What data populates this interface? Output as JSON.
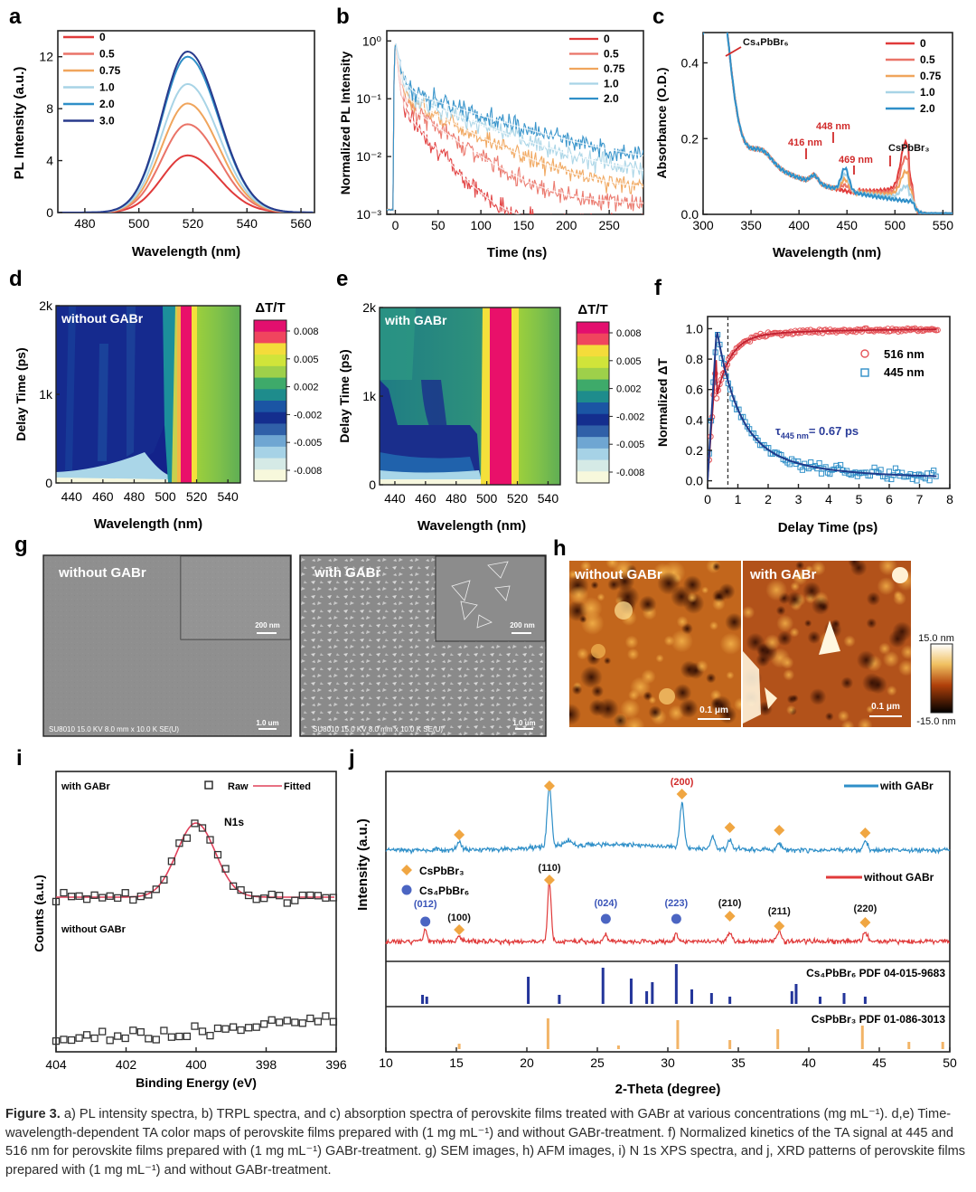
{
  "figure_label": "Figure 3.",
  "caption": "a) PL intensity spectra, b) TRPL spectra, and c) absorption spectra of perovskite films treated with GABr at various concentrations (mg mL⁻¹). d,e) Time-wavelength-dependent TA color maps of perovskite films prepared with (1 mg mL⁻¹) and without GABr-treatment. f) Normalized kinetics of the TA signal at 445 and 516 nm for perovskite films prepared with (1 mg mL⁻¹) GABr-treatment. g) SEM images, h) AFM images, i) N 1s XPS spectra, and j, XRD patterns of perovskite films prepared with (1 mg mL⁻¹) and without GABr-treatment.",
  "colors": {
    "c0": "#e03a3a",
    "c05": "#ea7468",
    "c075": "#f0a55c",
    "c10": "#a8d4e6",
    "c20": "#2f8fc8",
    "c30": "#283a8c",
    "red": "#e03a3a",
    "blue": "#2f8fc8",
    "navy": "#2b3d9a",
    "orange": "#f0a642",
    "afm_dark": "#3a1205",
    "afm_mid": "#c8661a"
  },
  "panel_labels": [
    "a",
    "b",
    "c",
    "d",
    "e",
    "f",
    "g",
    "h",
    "i",
    "j"
  ],
  "chart_data": [
    {
      "id": "a",
      "type": "line",
      "xlabel": "Wavelength (nm)",
      "ylabel": "PL Intensity (a.u.)",
      "xlim": [
        470,
        565
      ],
      "ylim": [
        0,
        14
      ],
      "xticks": [
        "480",
        "500",
        "520",
        "540",
        "560"
      ],
      "yticks": [
        "0",
        "4",
        "8",
        "12"
      ],
      "legend": [
        "0",
        "0.5",
        "0.75",
        "1.0",
        "2.0",
        "3.0"
      ],
      "series": [
        {
          "name": "0",
          "peak_x": 518,
          "peak_y": 4.4
        },
        {
          "name": "0.5",
          "peak_x": 518,
          "peak_y": 6.8
        },
        {
          "name": "0.75",
          "peak_x": 518,
          "peak_y": 8.4
        },
        {
          "name": "1.0",
          "peak_x": 518,
          "peak_y": 9.9
        },
        {
          "name": "2.0",
          "peak_x": 518,
          "peak_y": 12.0
        },
        {
          "name": "3.0",
          "peak_x": 518,
          "peak_y": 12.4
        }
      ]
    },
    {
      "id": "b",
      "type": "line",
      "xlabel": "Time (ns)",
      "ylabel": "Normalized PL Intensity",
      "yscale": "log",
      "xlim": [
        -10,
        290
      ],
      "ylim": [
        0.001,
        1.5
      ],
      "xticks": [
        "0",
        "50",
        "100",
        "150",
        "200",
        "250"
      ],
      "yticks": [
        "10⁻³",
        "10⁻²",
        "10⁻¹",
        "10⁰"
      ],
      "legend": [
        "0",
        "0.5",
        "0.75",
        "1.0",
        "2.0"
      ],
      "series": [
        {
          "name": "0",
          "y_end": 0.0012
        },
        {
          "name": "0.5",
          "y_end": 0.0025
        },
        {
          "name": "0.75",
          "y_end": 0.004
        },
        {
          "name": "1.0",
          "y_end": 0.006
        },
        {
          "name": "2.0",
          "y_end": 0.009
        }
      ]
    },
    {
      "id": "c",
      "type": "line",
      "xlabel": "Wavelength (nm)",
      "ylabel": "Absorbance (O.D.)",
      "xlim": [
        300,
        560
      ],
      "ylim": [
        0,
        0.48
      ],
      "xticks": [
        "300",
        "350",
        "400",
        "450",
        "500",
        "550"
      ],
      "yticks": [
        "0.0",
        "0.2",
        "0.4"
      ],
      "legend": [
        "0",
        "0.5",
        "0.75",
        "1.0",
        "2.0"
      ],
      "annotations": [
        "Cs₄PbBr₆",
        "448 nm",
        "416 nm",
        "469 nm",
        "CsPbBr₃"
      ]
    },
    {
      "id": "d",
      "type": "heatmap",
      "title": "without GABr",
      "xlabel": "Wavelength (nm)",
      "ylabel": "Delay Time (ps)",
      "xticks": [
        "440",
        "460",
        "480",
        "500",
        "520",
        "540"
      ],
      "yticks": [
        "0",
        "1k",
        "2k"
      ],
      "colorbar_title": "ΔT/T",
      "colorbar_ticks": [
        "0.008",
        "0.005",
        "0.002",
        "-0.002",
        "-0.005",
        "-0.008"
      ]
    },
    {
      "id": "e",
      "type": "heatmap",
      "title": "with GABr",
      "xlabel": "Wavelength (nm)",
      "ylabel": "Delay Time (ps)",
      "xticks": [
        "440",
        "460",
        "480",
        "500",
        "520",
        "540"
      ],
      "yticks": [
        "0",
        "1k",
        "2k"
      ],
      "colorbar_title": "ΔT/T",
      "colorbar_ticks": [
        "0.008",
        "0.005",
        "0.002",
        "-0.002",
        "-0.005",
        "-0.008"
      ]
    },
    {
      "id": "f",
      "type": "scatter",
      "xlabel": "Delay Time (ps)",
      "ylabel": "Normalized ΔT",
      "xlim": [
        0,
        8
      ],
      "ylim": [
        -0.05,
        1.08
      ],
      "xticks": [
        "0",
        "1",
        "2",
        "3",
        "4",
        "5",
        "6",
        "7",
        "8"
      ],
      "yticks": [
        "0.0",
        "0.2",
        "0.4",
        "0.6",
        "0.8",
        "1.0"
      ],
      "legend": [
        "516 nm",
        "445 nm"
      ],
      "annotation": "τ₄₄₅ ₙₘ= 0.67 ps",
      "tau_label_main": "τ",
      "tau_label_sub": "445 nm",
      "tau_label_value": "= 0.67 ps",
      "dashed_line_x": 0.67
    },
    {
      "id": "i",
      "type": "scatter",
      "xlabel": "Binding Energy (eV)",
      "ylabel": "Counts (a.u.)",
      "xlim": [
        404,
        396
      ],
      "xticks": [
        "404",
        "402",
        "400",
        "398",
        "396"
      ],
      "labels": [
        "with GABr",
        "without GABr",
        "N1s"
      ],
      "legend": [
        "Raw",
        "Fitted"
      ],
      "peak_x": 400.0
    },
    {
      "id": "j",
      "type": "line",
      "xlabel": "2-Theta (degree)",
      "ylabel": "Intensity (a.u.)",
      "xlim": [
        10,
        50
      ],
      "xticks": [
        "10",
        "15",
        "20",
        "25",
        "30",
        "35",
        "40",
        "45",
        "50"
      ],
      "legend": [
        "with GABr",
        "without GABr",
        "CsPbBr₃",
        "Cs₄PbBr₆"
      ],
      "peaks": [
        {
          "label": "(012)",
          "x": 12.8,
          "phase": "Cs4PbBr6"
        },
        {
          "label": "(100)",
          "x": 15.2,
          "phase": "CsPbBr3"
        },
        {
          "label": "(110)",
          "x": 21.6,
          "phase": "CsPbBr3"
        },
        {
          "label": "(024)",
          "x": 25.6,
          "phase": "Cs4PbBr6"
        },
        {
          "label": "(223)",
          "x": 30.6,
          "phase": "Cs4PbBr6"
        },
        {
          "label": "(200)",
          "x": 31.0,
          "phase": "CsPbBr3"
        },
        {
          "label": "(210)",
          "x": 34.4,
          "phase": "CsPbBr3"
        },
        {
          "label": "(211)",
          "x": 37.9,
          "phase": "CsPbBr3"
        },
        {
          "label": "(220)",
          "x": 44.0,
          "phase": "CsPbBr3"
        }
      ],
      "reference_patterns": [
        "Cs₄PbBr₆ PDF 04-015-9683",
        "CsPbBr₃ PDF 01-086-3013"
      ],
      "ref_cs4": [
        12.6,
        12.9,
        20.1,
        22.3,
        25.4,
        27.4,
        28.5,
        28.9,
        30.6,
        31.7,
        33.1,
        34.4,
        38.8,
        39.1,
        40.8,
        42.5,
        44.0
      ],
      "ref_cspb": [
        15.2,
        21.5,
        26.5,
        30.7,
        34.4,
        37.8,
        43.8,
        47.1,
        49.5
      ]
    }
  ],
  "images": {
    "g_left": {
      "label": "without GABr",
      "scale_inset": "200 nm",
      "scale_main": "1.0 um",
      "footer": "SU8010 15.0 KV 8.0 mm x 10.0 K SE(U)"
    },
    "g_right": {
      "label": "with GABr",
      "scale_inset": "200 nm",
      "scale_main": "1.0 um",
      "footer": "SU8010 15.0 KV 8.0 mm x 10.0 K SE(U)"
    },
    "h_left": {
      "label": "without GABr",
      "scale": "0.1 μm"
    },
    "h_right": {
      "label": "with GABr",
      "scale": "0.1 μm"
    },
    "h_colorbar": {
      "top": "15.0 nm",
      "bottom": "-15.0 nm"
    }
  }
}
